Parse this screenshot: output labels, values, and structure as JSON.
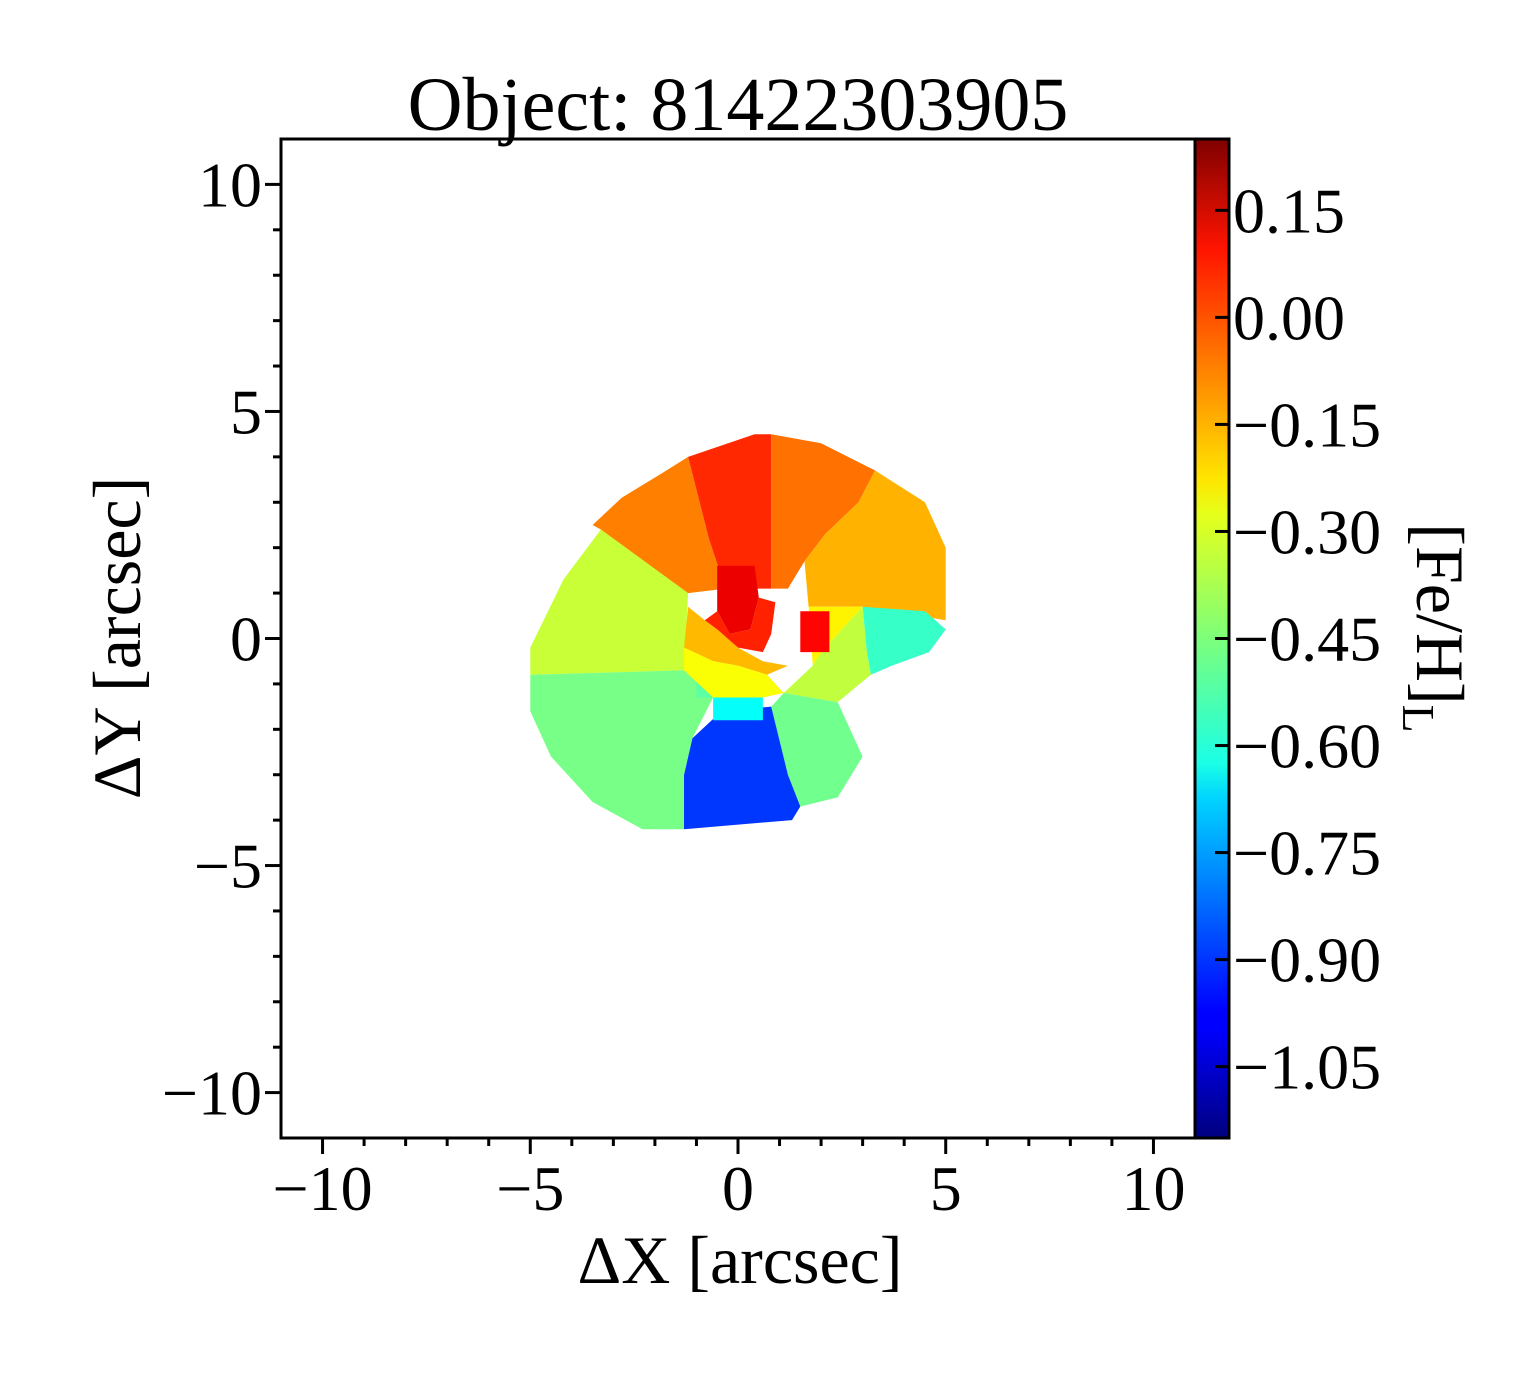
{
  "chart_data": {
    "type": "heatmap",
    "title": "Object: 81422303905",
    "xlabel": "ΔX [arcsec]",
    "ylabel": "ΔY [arcsec]",
    "xlim": [
      -11,
      11
    ],
    "ylim": [
      -11,
      11
    ],
    "x_ticks": [
      -10,
      -5,
      0,
      5,
      10
    ],
    "y_ticks": [
      10,
      5,
      0,
      -5,
      -10
    ],
    "x_tick_labels": [
      "−10",
      "−5",
      "0",
      "5",
      "10"
    ],
    "y_tick_labels": [
      "10",
      "5",
      "0",
      "−5",
      "−10"
    ],
    "colorbar": {
      "label_main": "[Fe/H]",
      "label_sub": "L",
      "range": [
        -1.15,
        0.25
      ],
      "colormap": "jet",
      "ticks": [
        0.15,
        0.0,
        -0.15,
        -0.3,
        -0.45,
        -0.6,
        -0.75,
        -0.9,
        -1.05
      ],
      "tick_labels": [
        "0.15",
        "0.00",
        "−0.15",
        "−0.30",
        "−0.45",
        "−0.60",
        "−0.75",
        "−0.90",
        "−1.05"
      ]
    },
    "regions": [
      {
        "name": "west",
        "value": -0.35,
        "points": [
          [
            -1.3,
            -0.7
          ],
          [
            -5,
            -0.8
          ],
          [
            -5,
            -0.2
          ],
          [
            -4.2,
            1.3
          ],
          [
            -3.3,
            2.4
          ],
          [
            -1.2,
            1.0
          ]
        ]
      },
      {
        "name": "northwest",
        "value": -0.1,
        "points": [
          [
            -1.2,
            1.0
          ],
          [
            -3.3,
            2.4
          ],
          [
            -3.5,
            2.5
          ],
          [
            -2.8,
            3.1
          ],
          [
            -1.9,
            3.6
          ],
          [
            -1.2,
            4.0
          ],
          [
            -0.7,
            2.2
          ],
          [
            -0.3,
            1.1
          ]
        ]
      },
      {
        "name": "north",
        "value": 0.02,
        "points": [
          [
            -0.3,
            1.1
          ],
          [
            -0.7,
            2.2
          ],
          [
            -1.2,
            4.0
          ],
          [
            0.4,
            4.5
          ],
          [
            0.8,
            4.5
          ],
          [
            0.8,
            1.1
          ]
        ]
      },
      {
        "name": "northeast",
        "value": -0.08,
        "points": [
          [
            0.8,
            1.1
          ],
          [
            0.8,
            4.5
          ],
          [
            2.0,
            4.3
          ],
          [
            3.3,
            3.7
          ],
          [
            2.9,
            3.0
          ],
          [
            2.1,
            2.3
          ],
          [
            1.6,
            1.7
          ],
          [
            1.2,
            1.1
          ]
        ]
      },
      {
        "name": "east",
        "value": -0.17,
        "points": [
          [
            1.6,
            1.7
          ],
          [
            2.1,
            2.3
          ],
          [
            2.9,
            3.0
          ],
          [
            3.3,
            3.7
          ],
          [
            4.5,
            3.0
          ],
          [
            5.0,
            2.0
          ],
          [
            5.0,
            0.4
          ],
          [
            3.0,
            0.7
          ],
          [
            1.7,
            0.7
          ]
        ]
      },
      {
        "name": "east-blue-green",
        "value": -0.55,
        "points": [
          [
            3.0,
            0.7
          ],
          [
            4.5,
            0.6
          ],
          [
            5.0,
            0.2
          ],
          [
            4.6,
            -0.3
          ],
          [
            3.7,
            -0.6
          ],
          [
            3.2,
            -0.8
          ],
          [
            3.1,
            -0.3
          ]
        ]
      },
      {
        "name": "east-inner",
        "value": -0.26,
        "points": [
          [
            1.7,
            0.7
          ],
          [
            3.0,
            0.7
          ],
          [
            2.3,
            0.0
          ],
          [
            2.0,
            -0.3
          ],
          [
            1.8,
            -0.6
          ]
        ]
      },
      {
        "name": "southeast",
        "value": -0.36,
        "points": [
          [
            1.8,
            -0.6
          ],
          [
            2.0,
            -0.3
          ],
          [
            2.3,
            0.0
          ],
          [
            3.0,
            0.7
          ],
          [
            3.1,
            -0.3
          ],
          [
            3.2,
            -0.8
          ],
          [
            2.4,
            -1.4
          ],
          [
            1.1,
            -1.2
          ]
        ]
      },
      {
        "name": "south",
        "value": -0.47,
        "points": [
          [
            1.1,
            -1.2
          ],
          [
            2.4,
            -1.4
          ],
          [
            3.0,
            -2.6
          ],
          [
            2.4,
            -3.5
          ],
          [
            1.5,
            -3.7
          ],
          [
            1.2,
            -3.0
          ],
          [
            0.8,
            -1.5
          ]
        ]
      },
      {
        "name": "south-blue",
        "value": -0.9,
        "points": [
          [
            -1.3,
            -3.0
          ],
          [
            -1.3,
            -4.2
          ],
          [
            1.3,
            -4.0
          ],
          [
            1.5,
            -3.7
          ],
          [
            1.2,
            -3.0
          ],
          [
            0.8,
            -1.5
          ],
          [
            -0.4,
            -1.6
          ],
          [
            -1.1,
            -2.2
          ]
        ]
      },
      {
        "name": "southwest",
        "value": -0.46,
        "points": [
          [
            -5,
            -0.8
          ],
          [
            -1.3,
            -0.7
          ],
          [
            -0.6,
            -1.3
          ],
          [
            -1.1,
            -2.2
          ],
          [
            -1.3,
            -3.0
          ],
          [
            -1.3,
            -4.2
          ],
          [
            -2.3,
            -4.2
          ],
          [
            -3.5,
            -3.6
          ],
          [
            -4.5,
            -2.6
          ],
          [
            -5,
            -1.6
          ]
        ]
      },
      {
        "name": "center-cyan",
        "value": -0.62,
        "points": [
          [
            -0.6,
            -1.3
          ],
          [
            0.6,
            -1.3
          ],
          [
            0.6,
            -1.8
          ],
          [
            -0.6,
            -1.8
          ]
        ]
      },
      {
        "name": "center-blue-green",
        "value": -0.5,
        "points": [
          [
            -1.0,
            -1.3
          ],
          [
            -0.6,
            -1.3
          ],
          [
            -0.6,
            -0.9
          ],
          [
            -1.0,
            -0.9
          ]
        ]
      },
      {
        "name": "center-yellow-1",
        "value": -0.18,
        "points": [
          [
            -1.3,
            -0.2
          ],
          [
            -1.2,
            0.7
          ],
          [
            -0.8,
            0.4
          ],
          [
            -0.5,
            0.2
          ],
          [
            0.0,
            -0.2
          ],
          [
            0.6,
            -0.5
          ],
          [
            1.2,
            -0.6
          ],
          [
            0.7,
            -0.8
          ],
          [
            0.0,
            -0.6
          ],
          [
            -0.6,
            -0.5
          ]
        ]
      },
      {
        "name": "center-yellow-green",
        "value": -0.28,
        "points": [
          [
            -1.3,
            -0.7
          ],
          [
            -1.3,
            -0.2
          ],
          [
            -0.6,
            -0.5
          ],
          [
            0.0,
            -0.6
          ],
          [
            0.7,
            -0.8
          ],
          [
            1.1,
            -1.2
          ],
          [
            0.6,
            -1.3
          ],
          [
            -0.6,
            -1.3
          ]
        ]
      },
      {
        "name": "core-red",
        "value": 0.1,
        "points": [
          [
            -0.5,
            1.6
          ],
          [
            0.4,
            1.6
          ],
          [
            0.5,
            0.9
          ],
          [
            0.3,
            0.2
          ],
          [
            -0.2,
            0.1
          ],
          [
            -0.5,
            0.6
          ]
        ]
      },
      {
        "name": "core-orange",
        "value": 0.03,
        "points": [
          [
            -0.8,
            0.4
          ],
          [
            -0.5,
            0.6
          ],
          [
            -0.2,
            0.1
          ],
          [
            0.3,
            0.2
          ],
          [
            0.5,
            0.9
          ],
          [
            0.9,
            0.8
          ],
          [
            0.8,
            0.1
          ],
          [
            0.6,
            -0.3
          ],
          [
            0.0,
            -0.2
          ],
          [
            -0.5,
            0.2
          ]
        ]
      },
      {
        "name": "east-red-spot",
        "value": 0.07,
        "points": [
          [
            1.5,
            0.6
          ],
          [
            2.2,
            0.6
          ],
          [
            2.2,
            -0.3
          ],
          [
            1.5,
            -0.3
          ]
        ]
      }
    ]
  }
}
